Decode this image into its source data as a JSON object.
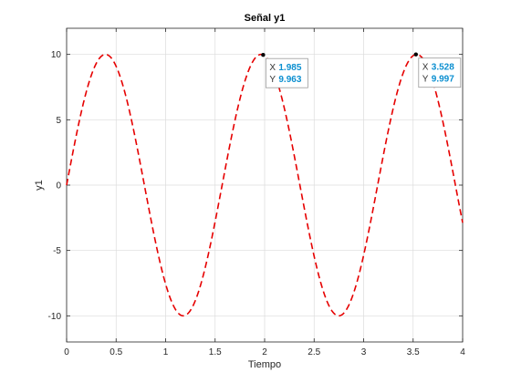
{
  "chart_data": {
    "type": "line",
    "title": "Señal y1",
    "xlabel": "Tiempo",
    "ylabel": "y1",
    "xlim": [
      0,
      4
    ],
    "ylim": [
      -12,
      12
    ],
    "xticks": [
      "0",
      "0.5",
      "1",
      "1.5",
      "2",
      "2.5",
      "3",
      "3.5",
      "4"
    ],
    "yticks": [
      "-10",
      "-5",
      "0",
      "5",
      "10"
    ],
    "grid": true,
    "series": [
      {
        "color": "#e60000",
        "style": "dashed",
        "function": {
          "amplitude": 10,
          "angular_frequency": 4,
          "phase": 0
        }
      }
    ],
    "datatips": [
      {
        "x_label": "X",
        "x_value": "1.985",
        "y_label": "Y",
        "y_value": "9.963",
        "x": 1.985,
        "y": 9.963
      },
      {
        "x_label": "X",
        "x_value": "3.528",
        "y_label": "Y",
        "y_value": "9.997",
        "x": 3.528,
        "y": 9.997
      }
    ]
  }
}
